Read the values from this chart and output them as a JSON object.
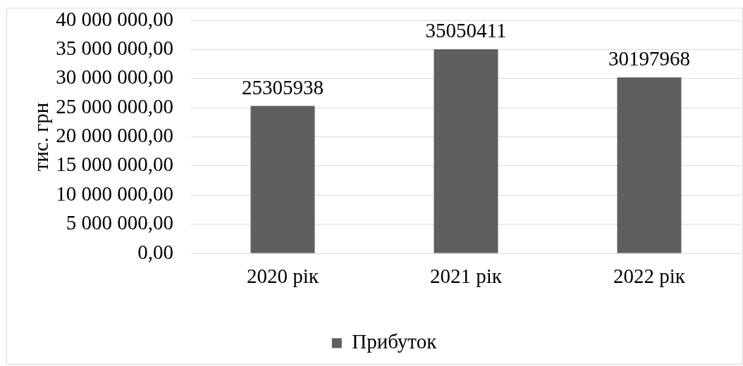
{
  "chart_data": {
    "type": "bar",
    "ylabel": "тис. грн",
    "categories": [
      "2020 рік",
      "2021 рік",
      "2022 рік"
    ],
    "series": [
      {
        "name": "Прибуток",
        "color": "#5f5f5f",
        "values": [
          25305938,
          35050411,
          30197968
        ]
      }
    ],
    "ylim": [
      0,
      40000000
    ],
    "yticks": [
      {
        "value": 0,
        "label": "0,00"
      },
      {
        "value": 5000000,
        "label": "5 000 000,00"
      },
      {
        "value": 10000000,
        "label": "10 000 000,00"
      },
      {
        "value": 15000000,
        "label": "15 000 000,00"
      },
      {
        "value": 20000000,
        "label": "20 000 000,00"
      },
      {
        "value": 25000000,
        "label": "25 000 000,00"
      },
      {
        "value": 30000000,
        "label": "30 000 000,00"
      },
      {
        "value": 35000000,
        "label": "35 000 000,00"
      },
      {
        "value": 40000000,
        "label": "40 000 000,00"
      }
    ],
    "grid": "y",
    "legend": "bottom",
    "data_labels": true
  }
}
